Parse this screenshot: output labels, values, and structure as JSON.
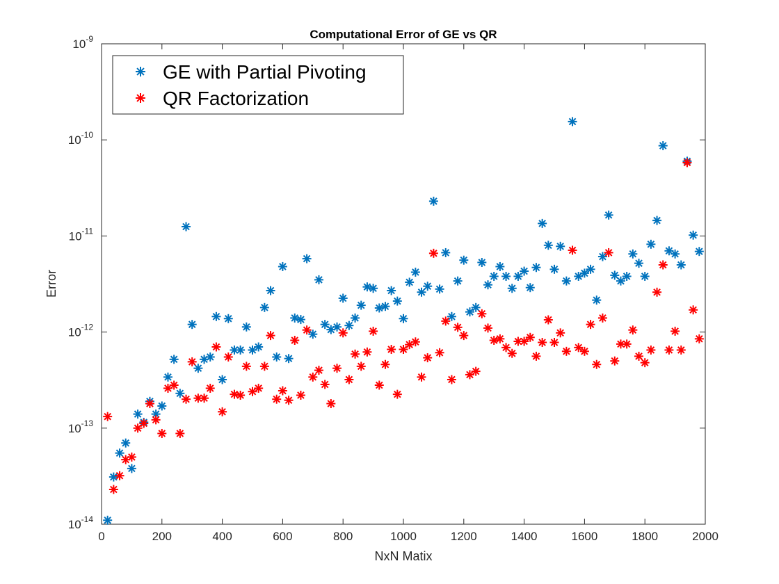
{
  "chart_data": {
    "type": "scatter",
    "title": "Computational Error of GE vs QR",
    "xlabel": "NxN Matix",
    "ylabel": "Error",
    "xlim": [
      0,
      2000
    ],
    "ylim": [
      1e-14,
      1e-09
    ],
    "yscale": "log",
    "grid": false,
    "legend_position": "top-left",
    "x_ticks": [
      {
        "value": 0,
        "label": "0"
      },
      {
        "value": 200,
        "label": "200"
      },
      {
        "value": 400,
        "label": "400"
      },
      {
        "value": 600,
        "label": "600"
      },
      {
        "value": 800,
        "label": "800"
      },
      {
        "value": 1000,
        "label": "1000"
      },
      {
        "value": 1200,
        "label": "1200"
      },
      {
        "value": 1400,
        "label": "1400"
      },
      {
        "value": 1600,
        "label": "1600"
      },
      {
        "value": 1800,
        "label": "1800"
      },
      {
        "value": 2000,
        "label": "2000"
      }
    ],
    "y_ticks": [
      {
        "value": 1e-14,
        "base": "10",
        "exp": "-14"
      },
      {
        "value": 1e-13,
        "base": "10",
        "exp": "-13"
      },
      {
        "value": 1e-12,
        "base": "10",
        "exp": "-12"
      },
      {
        "value": 1e-11,
        "base": "10",
        "exp": "-11"
      },
      {
        "value": 1e-10,
        "base": "10",
        "exp": "-10"
      },
      {
        "value": 1e-09,
        "base": "10",
        "exp": "-9"
      }
    ],
    "series": [
      {
        "name": "GE with Partial Pivoting",
        "color": "#0072BD",
        "marker": "asterisk",
        "points": [
          [
            20,
            1.1e-14
          ],
          [
            40,
            3.1e-14
          ],
          [
            60,
            5.5e-14
          ],
          [
            80,
            7e-14
          ],
          [
            100,
            3.8e-14
          ],
          [
            120,
            1.4e-13
          ],
          [
            140,
            1.15e-13
          ],
          [
            160,
            1.9e-13
          ],
          [
            180,
            1.4e-13
          ],
          [
            200,
            1.7e-13
          ],
          [
            220,
            3.4e-13
          ],
          [
            240,
            5.2e-13
          ],
          [
            260,
            2.3e-13
          ],
          [
            280,
            1.25e-11
          ],
          [
            300,
            1.2e-12
          ],
          [
            320,
            4.2e-13
          ],
          [
            340,
            5.2e-13
          ],
          [
            360,
            5.5e-13
          ],
          [
            380,
            1.45e-12
          ],
          [
            400,
            3.2e-13
          ],
          [
            420,
            1.38e-12
          ],
          [
            440,
            6.5e-13
          ],
          [
            460,
            6.5e-13
          ],
          [
            480,
            1.13e-12
          ],
          [
            500,
            6.5e-13
          ],
          [
            520,
            7e-13
          ],
          [
            540,
            1.8e-12
          ],
          [
            560,
            2.7e-12
          ],
          [
            580,
            5.5e-13
          ],
          [
            600,
            4.8e-12
          ],
          [
            620,
            5.3e-13
          ],
          [
            640,
            1.4e-12
          ],
          [
            660,
            1.35e-12
          ],
          [
            680,
            5.8e-12
          ],
          [
            700,
            9.5e-13
          ],
          [
            720,
            3.5e-12
          ],
          [
            740,
            1.2e-12
          ],
          [
            760,
            1.06e-12
          ],
          [
            780,
            1.13e-12
          ],
          [
            800,
            2.25e-12
          ],
          [
            820,
            1.17e-12
          ],
          [
            840,
            1.4e-12
          ],
          [
            860,
            1.9e-12
          ],
          [
            880,
            2.95e-12
          ],
          [
            900,
            2.85e-12
          ],
          [
            920,
            1.78e-12
          ],
          [
            940,
            1.85e-12
          ],
          [
            960,
            2.7e-12
          ],
          [
            980,
            2.1e-12
          ],
          [
            1000,
            1.38e-12
          ],
          [
            1020,
            3.3e-12
          ],
          [
            1040,
            4.2e-12
          ],
          [
            1060,
            2.6e-12
          ],
          [
            1080,
            3e-12
          ],
          [
            1100,
            2.3e-11
          ],
          [
            1120,
            2.8e-12
          ],
          [
            1140,
            6.7e-12
          ],
          [
            1160,
            1.45e-12
          ],
          [
            1180,
            3.4e-12
          ],
          [
            1200,
            5.6e-12
          ],
          [
            1220,
            1.62e-12
          ],
          [
            1240,
            1.8e-12
          ],
          [
            1260,
            5.3e-12
          ],
          [
            1280,
            3.1e-12
          ],
          [
            1300,
            3.8e-12
          ],
          [
            1320,
            4.8e-12
          ],
          [
            1340,
            3.8e-12
          ],
          [
            1360,
            2.85e-12
          ],
          [
            1380,
            3.8e-12
          ],
          [
            1400,
            4.3e-12
          ],
          [
            1420,
            2.9e-12
          ],
          [
            1440,
            4.7e-12
          ],
          [
            1460,
            1.35e-11
          ],
          [
            1480,
            8e-12
          ],
          [
            1500,
            4.5e-12
          ],
          [
            1520,
            7.8e-12
          ],
          [
            1540,
            3.4e-12
          ],
          [
            1560,
            1.55e-10
          ],
          [
            1580,
            3.8e-12
          ],
          [
            1600,
            4.1e-12
          ],
          [
            1620,
            4.5e-12
          ],
          [
            1640,
            2.15e-12
          ],
          [
            1660,
            6.1e-12
          ],
          [
            1680,
            1.65e-11
          ],
          [
            1700,
            3.9e-12
          ],
          [
            1720,
            3.4e-12
          ],
          [
            1740,
            3.8e-12
          ],
          [
            1760,
            6.5e-12
          ],
          [
            1780,
            5.2e-12
          ],
          [
            1800,
            3.8e-12
          ],
          [
            1820,
            8.2e-12
          ],
          [
            1840,
            1.45e-11
          ],
          [
            1860,
            8.7e-11
          ],
          [
            1880,
            7e-12
          ],
          [
            1900,
            6.5e-12
          ],
          [
            1920,
            5e-12
          ],
          [
            1940,
            6e-11
          ],
          [
            1960,
            1.02e-11
          ],
          [
            1980,
            6.9e-12
          ]
        ]
      },
      {
        "name": "QR Factorization",
        "color": "#FF0000",
        "marker": "asterisk",
        "points": [
          [
            20,
            1.32e-13
          ],
          [
            40,
            2.3e-14
          ],
          [
            60,
            3.2e-14
          ],
          [
            80,
            4.7e-14
          ],
          [
            100,
            5e-14
          ],
          [
            120,
            1e-13
          ],
          [
            140,
            1.12e-13
          ],
          [
            160,
            1.8e-13
          ],
          [
            180,
            1.22e-13
          ],
          [
            200,
            8.8e-14
          ],
          [
            220,
            2.6e-13
          ],
          [
            240,
            2.8e-13
          ],
          [
            260,
            8.8e-14
          ],
          [
            280,
            2e-13
          ],
          [
            300,
            4.9e-13
          ],
          [
            320,
            2.05e-13
          ],
          [
            340,
            2.05e-13
          ],
          [
            360,
            2.6e-13
          ],
          [
            380,
            7e-13
          ],
          [
            400,
            1.48e-13
          ],
          [
            420,
            5.5e-13
          ],
          [
            440,
            2.25e-13
          ],
          [
            460,
            2.2e-13
          ],
          [
            480,
            4.4e-13
          ],
          [
            500,
            2.4e-13
          ],
          [
            520,
            2.6e-13
          ],
          [
            540,
            4.4e-13
          ],
          [
            560,
            9.2e-13
          ],
          [
            580,
            2e-13
          ],
          [
            600,
            2.45e-13
          ],
          [
            620,
            1.95e-13
          ],
          [
            640,
            8.2e-13
          ],
          [
            660,
            2.2e-13
          ],
          [
            680,
            1.05e-12
          ],
          [
            700,
            3.4e-13
          ],
          [
            720,
            4e-13
          ],
          [
            740,
            2.85e-13
          ],
          [
            760,
            1.8e-13
          ],
          [
            780,
            4.2e-13
          ],
          [
            800,
            9.8e-13
          ],
          [
            820,
            3.2e-13
          ],
          [
            840,
            5.9e-13
          ],
          [
            860,
            4.4e-13
          ],
          [
            880,
            6.2e-13
          ],
          [
            900,
            1.02e-12
          ],
          [
            920,
            2.8e-13
          ],
          [
            940,
            4.6e-13
          ],
          [
            960,
            6.6e-13
          ],
          [
            980,
            2.25e-13
          ],
          [
            1000,
            6.6e-13
          ],
          [
            1020,
            7.4e-13
          ],
          [
            1040,
            7.9e-13
          ],
          [
            1060,
            3.4e-13
          ],
          [
            1080,
            5.4e-13
          ],
          [
            1100,
            6.6e-12
          ],
          [
            1120,
            6.1e-13
          ],
          [
            1140,
            1.3e-12
          ],
          [
            1160,
            3.2e-13
          ],
          [
            1180,
            1.12e-12
          ],
          [
            1200,
            9.2e-13
          ],
          [
            1220,
            3.6e-13
          ],
          [
            1240,
            3.9e-13
          ],
          [
            1260,
            1.55e-12
          ],
          [
            1280,
            1.1e-12
          ],
          [
            1300,
            8.2e-13
          ],
          [
            1320,
            8.5e-13
          ],
          [
            1340,
            6.9e-13
          ],
          [
            1360,
            6e-13
          ],
          [
            1380,
            8e-13
          ],
          [
            1400,
            8e-13
          ],
          [
            1420,
            8.8e-13
          ],
          [
            1440,
            5.6e-13
          ],
          [
            1460,
            7.8e-13
          ],
          [
            1480,
            1.34e-12
          ],
          [
            1500,
            7.8e-13
          ],
          [
            1520,
            9.8e-13
          ],
          [
            1540,
            6.3e-13
          ],
          [
            1560,
            7.1e-12
          ],
          [
            1580,
            6.9e-13
          ],
          [
            1600,
            6.3e-13
          ],
          [
            1620,
            1.2e-12
          ],
          [
            1640,
            4.6e-13
          ],
          [
            1660,
            1.4e-12
          ],
          [
            1680,
            6.7e-12
          ],
          [
            1700,
            5e-13
          ],
          [
            1720,
            7.5e-13
          ],
          [
            1740,
            7.5e-13
          ],
          [
            1760,
            1.05e-12
          ],
          [
            1780,
            5.6e-13
          ],
          [
            1800,
            4.8e-13
          ],
          [
            1820,
            6.5e-13
          ],
          [
            1840,
            2.6e-12
          ],
          [
            1860,
            5e-12
          ],
          [
            1880,
            6.5e-13
          ],
          [
            1900,
            1.02e-12
          ],
          [
            1920,
            6.5e-13
          ],
          [
            1940,
            5.8e-11
          ],
          [
            1960,
            1.7e-12
          ],
          [
            1980,
            8.5e-13
          ]
        ]
      }
    ]
  }
}
